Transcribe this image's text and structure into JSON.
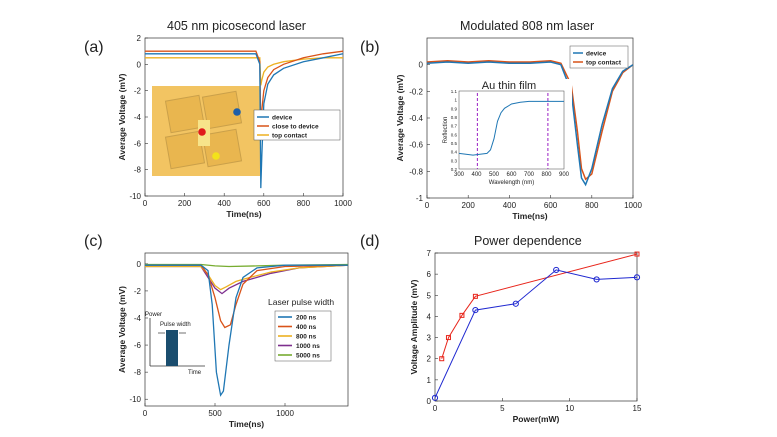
{
  "panels": [
    {
      "id": "a",
      "label": "(a)",
      "title": "405 nm picosecond laser"
    },
    {
      "id": "b",
      "label": "(b)",
      "title": "Modulated 808 nm laser"
    },
    {
      "id": "c",
      "label": "(c)",
      "title": ""
    },
    {
      "id": "d",
      "label": "(d)",
      "title": "Power dependence"
    }
  ],
  "chart_data": [
    {
      "panel": "a",
      "type": "line",
      "title": "405 nm picosecond laser",
      "xlabel": "Time(ns)",
      "ylabel": "Average Voltage (mV)",
      "xlim": [
        0,
        1000
      ],
      "ylim": [
        -10,
        2
      ],
      "xticks": [
        0,
        200,
        400,
        600,
        800,
        1000
      ],
      "yticks": [
        -10,
        -8,
        -6,
        -4,
        -2,
        0,
        2
      ],
      "legend": [
        "device",
        "close to device",
        "top contact"
      ],
      "series": [
        {
          "name": "device",
          "color": "#1f77b4",
          "x": [
            0,
            200,
            400,
            560,
            580,
            585,
            590,
            600,
            620,
            650,
            700,
            800,
            900,
            1000
          ],
          "y": [
            0.8,
            0.8,
            0.8,
            0.8,
            0.0,
            -9.4,
            -7.0,
            -3.0,
            -1.5,
            -0.8,
            -0.3,
            0.2,
            0.5,
            0.8
          ]
        },
        {
          "name": "close to device",
          "color": "#d95319",
          "x": [
            0,
            200,
            400,
            560,
            580,
            585,
            590,
            600,
            620,
            650,
            700,
            800,
            900,
            1000
          ],
          "y": [
            1.0,
            1.0,
            1.0,
            1.0,
            0.2,
            -4.8,
            -3.5,
            -2.0,
            -1.0,
            -0.4,
            0.0,
            0.5,
            0.8,
            1.0
          ]
        },
        {
          "name": "top contact",
          "color": "#edb120",
          "x": [
            0,
            200,
            400,
            560,
            580,
            585,
            590,
            600,
            620,
            650,
            700,
            800,
            900,
            1000
          ],
          "y": [
            0.5,
            0.5,
            0.5,
            0.5,
            0.5,
            -1.6,
            -1.2,
            -0.6,
            -0.2,
            0.0,
            0.2,
            0.4,
            0.5,
            0.5
          ]
        }
      ],
      "inset": {
        "description": "device photo with measurement spots",
        "spots": [
          "blue",
          "red",
          "yellow"
        ]
      }
    },
    {
      "panel": "b",
      "type": "line",
      "title": "Modulated 808 nm laser",
      "xlabel": "Time(ns)",
      "ylabel": "Average Voltage (mV)",
      "xlim": [
        0,
        1000
      ],
      "ylim": [
        -1,
        0.2
      ],
      "xticks": [
        0,
        200,
        400,
        600,
        800,
        1000
      ],
      "yticks": [
        -1,
        -0.8,
        -0.6,
        -0.4,
        -0.2,
        0
      ],
      "legend": [
        "device",
        "top contact"
      ],
      "series": [
        {
          "name": "device",
          "color": "#1f77b4",
          "x": [
            0,
            100,
            200,
            300,
            400,
            500,
            600,
            650,
            700,
            730,
            750,
            770,
            800,
            850,
            900,
            950,
            1000
          ],
          "y": [
            0.01,
            0.02,
            0.01,
            0.02,
            0.01,
            0.01,
            0.02,
            0.0,
            -0.2,
            -0.6,
            -0.85,
            -0.9,
            -0.78,
            -0.45,
            -0.18,
            -0.05,
            0.0
          ]
        },
        {
          "name": "top contact",
          "color": "#d95319",
          "x": [
            0,
            100,
            200,
            300,
            400,
            500,
            600,
            650,
            700,
            730,
            750,
            770,
            800,
            850,
            900,
            950,
            1000
          ],
          "y": [
            0.02,
            0.03,
            0.02,
            0.03,
            0.02,
            0.02,
            0.03,
            0.01,
            -0.15,
            -0.5,
            -0.78,
            -0.86,
            -0.82,
            -0.5,
            -0.2,
            -0.06,
            0.0
          ]
        }
      ],
      "inset": {
        "title": "Au thin film",
        "xlabel": "Wavelength (nm)",
        "ylabel": "Reflection",
        "xlim": [
          300,
          900
        ],
        "ylim": [
          0.2,
          1.1
        ],
        "xticks": [
          300,
          400,
          500,
          600,
          700,
          800,
          900
        ],
        "yticks": [
          0.2,
          0.3,
          0.4,
          0.5,
          0.6,
          0.7,
          0.8,
          0.9,
          1,
          1.1
        ],
        "markers": [
          405,
          808
        ],
        "x": [
          300,
          340,
          380,
          420,
          460,
          480,
          500,
          520,
          540,
          560,
          600,
          650,
          700,
          750,
          800,
          850,
          900
        ],
        "y": [
          0.38,
          0.37,
          0.36,
          0.37,
          0.38,
          0.42,
          0.55,
          0.75,
          0.85,
          0.9,
          0.95,
          0.97,
          0.98,
          0.98,
          0.98,
          0.98,
          0.98
        ]
      }
    },
    {
      "panel": "c",
      "type": "line",
      "xlabel": "Time(ns)",
      "ylabel": "Average Voltage (mV)",
      "xlim": [
        0,
        1450
      ],
      "ylim": [
        -10.5,
        0.8
      ],
      "xticks": [
        0,
        500,
        1000
      ],
      "yticks": [
        -10,
        -8,
        -6,
        -4,
        -2,
        0
      ],
      "legend_title": "Laser pulse width",
      "legend": [
        "200 ns",
        "400 ns",
        "800 ns",
        "1000 ns",
        "5000 ns"
      ],
      "series": [
        {
          "name": "200 ns",
          "color": "#1f77b4",
          "x": [
            0,
            400,
            450,
            480,
            510,
            540,
            560,
            600,
            650,
            700,
            800,
            1000,
            1450
          ],
          "y": [
            -0.1,
            -0.1,
            -0.5,
            -3.0,
            -8.0,
            -9.7,
            -9.4,
            -6.0,
            -2.5,
            -1.0,
            -0.3,
            -0.1,
            -0.1
          ]
        },
        {
          "name": "400 ns",
          "color": "#d95319",
          "x": [
            0,
            400,
            450,
            500,
            540,
            570,
            610,
            650,
            700,
            800,
            1000,
            1450
          ],
          "y": [
            -0.1,
            -0.1,
            -0.8,
            -2.5,
            -4.2,
            -4.7,
            -4.5,
            -3.0,
            -1.5,
            -0.5,
            -0.2,
            -0.1
          ]
        },
        {
          "name": "800 ns",
          "color": "#edb120",
          "x": [
            0,
            400,
            450,
            500,
            540,
            580,
            650,
            750,
            900,
            1100,
            1450
          ],
          "y": [
            -0.2,
            -0.2,
            -0.8,
            -1.6,
            -1.9,
            -1.7,
            -1.3,
            -1.0,
            -0.6,
            -0.3,
            -0.1
          ]
        },
        {
          "name": "1000 ns",
          "color": "#7e2f8e",
          "x": [
            0,
            400,
            450,
            500,
            550,
            600,
            700,
            800,
            900,
            1100,
            1450
          ],
          "y": [
            -0.2,
            -0.2,
            -1.0,
            -1.8,
            -2.2,
            -1.8,
            -1.3,
            -1.0,
            -0.7,
            -0.3,
            -0.1
          ]
        },
        {
          "name": "5000 ns",
          "color": "#77ac30",
          "x": [
            0,
            400,
            500,
            600,
            800,
            1000,
            1450
          ],
          "y": [
            -0.05,
            -0.05,
            -0.15,
            -0.2,
            -0.15,
            -0.1,
            -0.05
          ]
        }
      ],
      "inset": {
        "ylabel": "Power",
        "xlabel": "Time",
        "label": "Pulse width"
      }
    },
    {
      "panel": "d",
      "type": "line",
      "title": "Power dependence",
      "xlabel": "Power(mW)",
      "ylabel": "Voltage Amplitude (mV)",
      "xlim": [
        0,
        15
      ],
      "ylim": [
        0,
        7
      ],
      "xticks": [
        0,
        5,
        10,
        15
      ],
      "yticks": [
        0,
        1,
        2,
        3,
        4,
        5,
        6,
        7
      ],
      "series": [
        {
          "name": "red",
          "color": "#e8251b",
          "marker": "square",
          "x": [
            0.5,
            1,
            2,
            3,
            15
          ],
          "y": [
            2.0,
            3.0,
            4.05,
            4.95,
            6.95
          ]
        },
        {
          "name": "blue",
          "color": "#1f28d0",
          "marker": "circle",
          "x": [
            0,
            3,
            6,
            9,
            12,
            15
          ],
          "y": [
            0.15,
            4.3,
            4.6,
            6.2,
            5.75,
            5.85
          ]
        }
      ]
    }
  ]
}
